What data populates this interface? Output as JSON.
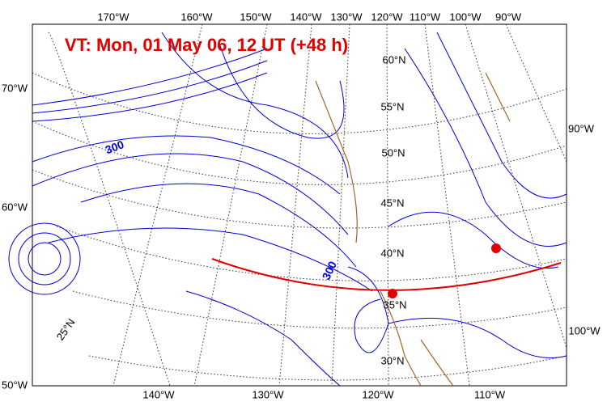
{
  "title": "VT:  Mon, 01 May 06, 12 UT (+48 h)",
  "top_labels": [
    "170°W",
    "160°W",
    "150°W",
    "140°W",
    "130°W",
    "120°W",
    "110°W",
    "100°W",
    "90°W"
  ],
  "left_labels": [
    "70°W",
    "60°W",
    "50°W"
  ],
  "right_labels": [
    "90°W",
    "100°W"
  ],
  "bottom_labels": [
    "140°W",
    "130°W",
    "120°W",
    "110°W"
  ],
  "latitude_labels": [
    "60°N",
    "55°N",
    "50°N",
    "45°N",
    "40°N",
    "35°N",
    "30°N",
    "25°N"
  ],
  "contour_labels": [
    "300",
    "300"
  ]
}
